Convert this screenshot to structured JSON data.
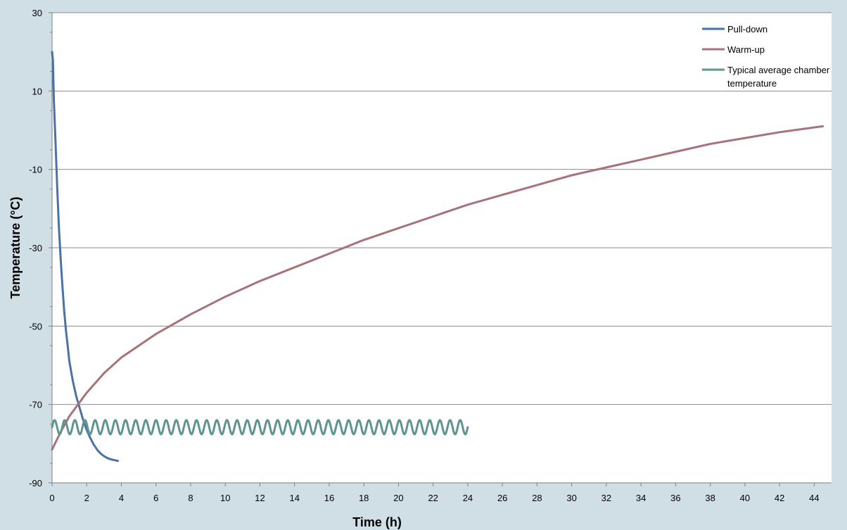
{
  "chart_data": {
    "type": "line",
    "title": "",
    "xlabel": "Time (h)",
    "ylabel": "Temperature (°C)",
    "xlim": [
      0,
      45
    ],
    "ylim": [
      -90,
      30
    ],
    "x_ticks": [
      0,
      2,
      4,
      6,
      8,
      10,
      12,
      14,
      16,
      18,
      20,
      22,
      24,
      26,
      28,
      30,
      32,
      34,
      36,
      38,
      40,
      42,
      44
    ],
    "y_ticks": [
      -90,
      -70,
      -50,
      -30,
      -10,
      10,
      30
    ],
    "grid": "horizontal",
    "legend_position": "top-right",
    "series": [
      {
        "name": "Pull-down",
        "color": "#4a72a5",
        "x": [
          0,
          0.05,
          0.1,
          0.2,
          0.3,
          0.4,
          0.5,
          0.6,
          0.7,
          0.8,
          0.9,
          1.0,
          1.2,
          1.4,
          1.6,
          1.8,
          2.0,
          2.2,
          2.4,
          2.6,
          2.8,
          3.0,
          3.2,
          3.4,
          3.6,
          3.8
        ],
        "y": [
          20,
          18,
          8,
          -3,
          -15,
          -25,
          -33,
          -40,
          -46,
          -51,
          -55,
          -59,
          -64,
          -68,
          -71,
          -74,
          -76.5,
          -78.5,
          -80.2,
          -81.5,
          -82.5,
          -83.2,
          -83.7,
          -84,
          -84.2,
          -84.4
        ]
      },
      {
        "name": "Warm-up",
        "color": "#a87378",
        "x": [
          0,
          0.5,
          1,
          2,
          3,
          4,
          6,
          8,
          10,
          12,
          14,
          16,
          18,
          20,
          22,
          24,
          26,
          28,
          30,
          32,
          34,
          36,
          38,
          40,
          42,
          44.5
        ],
        "y": [
          -81.5,
          -77,
          -73,
          -67,
          -62,
          -58,
          -52,
          -47,
          -42.5,
          -38.5,
          -35,
          -31.5,
          -28,
          -25,
          -22,
          -19,
          -16.5,
          -14,
          -11.5,
          -9.5,
          -7.5,
          -5.5,
          -3.5,
          -2,
          -0.5,
          1
        ]
      },
      {
        "name": "Typical average chamber temperature",
        "color": "#5f9490",
        "x_range": [
          0,
          24
        ],
        "mean": -75.8,
        "amplitude": 1.8,
        "cycles": 41
      }
    ]
  },
  "legend": {
    "entries": [
      "Pull-down",
      "Warm-up",
      "Typical average chamber",
      "temperature"
    ]
  }
}
